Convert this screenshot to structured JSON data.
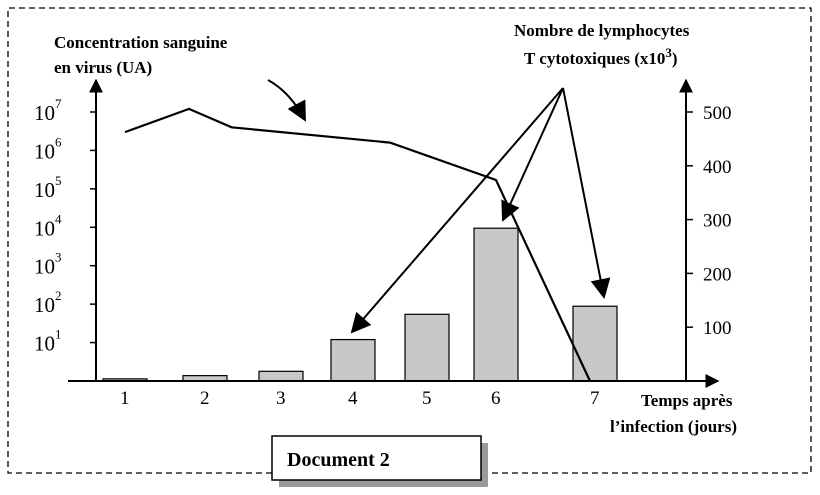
{
  "chart_data": {
    "type": "bar",
    "categories": [
      "1",
      "2",
      "3",
      "4",
      "5",
      "6",
      "7"
    ],
    "series": [
      {
        "name": "Nombre de lymphocytes T cytotoxiques (x10³)",
        "type": "bar",
        "axis": "right",
        "values": [
          4,
          10,
          18,
          77,
          124,
          284,
          139
        ],
        "color": "#c8c8c8"
      },
      {
        "name": "Concentration sanguine en virus (UA)",
        "type": "line",
        "axis": "left",
        "points": [
          {
            "x": 1,
            "y": 3000000
          },
          {
            "x": 1.8,
            "y": 12000000
          },
          {
            "x": 2.35,
            "y": 4000000
          },
          {
            "x": 4.5,
            "y": 1600000
          },
          {
            "x": 6,
            "y": 170000
          },
          {
            "x": 6.95,
            "y": 1
          }
        ],
        "color": "#000000"
      }
    ],
    "y_left": {
      "scale": "log",
      "ticks": [
        {
          "base": "10",
          "exp": "1",
          "value": 10
        },
        {
          "base": "10",
          "exp": "2",
          "value": 100
        },
        {
          "base": "10",
          "exp": "3",
          "value": 1000
        },
        {
          "base": "10",
          "exp": "4",
          "value": 10000
        },
        {
          "base": "10",
          "exp": "5",
          "value": 100000
        },
        {
          "base": "10",
          "exp": "6",
          "value": 1000000
        },
        {
          "base": "10",
          "exp": "7",
          "value": 10000000
        }
      ]
    },
    "y_right": {
      "scale": "linear",
      "ticks": [
        "100",
        "200",
        "300",
        "400",
        "500"
      ],
      "ylim": [
        0,
        550
      ]
    },
    "labels": {
      "left_line1": "Concentration sanguine",
      "left_line2": "en virus (UA)",
      "right_line1": "Nombre de lymphocytes",
      "right_line2_a": "T cytotoxiques (x10",
      "right_line2_sup": "3",
      "right_line2_b": ")",
      "x_line1": "Temps après",
      "x_line2": "l’infection (jours)"
    },
    "annotations": {
      "arrows_from": "right_label",
      "arrows_to_categories": [
        "4",
        "6",
        "7"
      ]
    },
    "grid": false,
    "document_label": "Document 2"
  }
}
